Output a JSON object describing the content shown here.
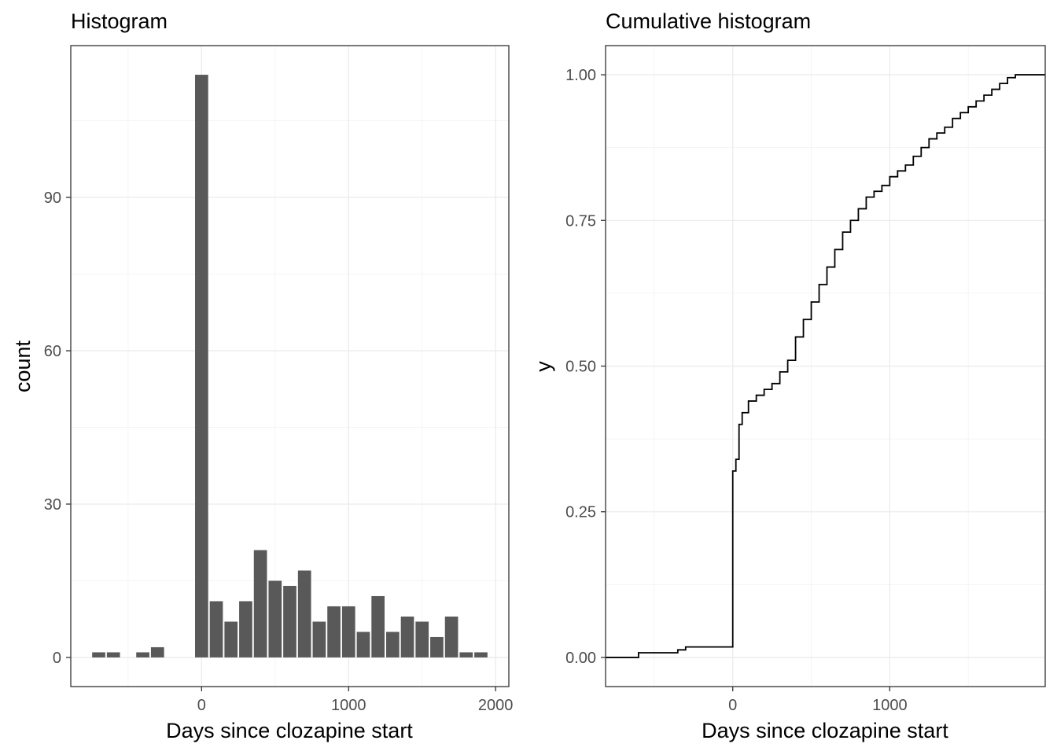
{
  "chart_data": [
    {
      "type": "bar",
      "title": "Histogram",
      "xlabel": "Days since clozapine start",
      "ylabel": "count",
      "xlim": [
        -890,
        2090
      ],
      "ylim": [
        -5.7,
        119.7
      ],
      "xticks": [
        0,
        1000,
        2000
      ],
      "yticks": [
        0,
        30,
        60,
        90
      ],
      "bin_width": 100,
      "bins": [
        {
          "center": -700,
          "count": 1
        },
        {
          "center": -600,
          "count": 1
        },
        {
          "center": -400,
          "count": 1
        },
        {
          "center": -300,
          "count": 2
        },
        {
          "center": 0,
          "count": 114
        },
        {
          "center": 100,
          "count": 11
        },
        {
          "center": 200,
          "count": 7
        },
        {
          "center": 300,
          "count": 11
        },
        {
          "center": 400,
          "count": 21
        },
        {
          "center": 500,
          "count": 15
        },
        {
          "center": 600,
          "count": 14
        },
        {
          "center": 700,
          "count": 17
        },
        {
          "center": 800,
          "count": 7
        },
        {
          "center": 900,
          "count": 10
        },
        {
          "center": 1000,
          "count": 10
        },
        {
          "center": 1100,
          "count": 5
        },
        {
          "center": 1200,
          "count": 12
        },
        {
          "center": 1300,
          "count": 5
        },
        {
          "center": 1400,
          "count": 8
        },
        {
          "center": 1500,
          "count": 7
        },
        {
          "center": 1600,
          "count": 4
        },
        {
          "center": 1700,
          "count": 8
        },
        {
          "center": 1800,
          "count": 1
        },
        {
          "center": 1900,
          "count": 1
        }
      ],
      "grid": true
    },
    {
      "type": "line",
      "title": "Cumulative histogram",
      "xlabel": "Days since clozapine start",
      "ylabel": "y",
      "xlim": [
        -810,
        1990
      ],
      "ylim": [
        -0.05,
        1.05
      ],
      "xticks": [
        0,
        1000
      ],
      "yticks": [
        0.0,
        0.25,
        0.5,
        0.75,
        1.0
      ],
      "ytick_labels": [
        "0.00",
        "0.25",
        "0.50",
        "0.75",
        "1.00"
      ],
      "step": true,
      "x": [
        -810,
        -600,
        -350,
        -300,
        0,
        0,
        20,
        40,
        60,
        100,
        150,
        200,
        250,
        300,
        350,
        400,
        450,
        500,
        550,
        600,
        650,
        700,
        750,
        800,
        850,
        900,
        950,
        1000,
        1050,
        1100,
        1150,
        1200,
        1250,
        1300,
        1350,
        1400,
        1450,
        1500,
        1550,
        1600,
        1650,
        1700,
        1750,
        1800,
        1850,
        1900,
        1990
      ],
      "y": [
        0.0,
        0.008,
        0.013,
        0.018,
        0.021,
        0.32,
        0.34,
        0.4,
        0.42,
        0.44,
        0.45,
        0.46,
        0.47,
        0.49,
        0.51,
        0.55,
        0.58,
        0.61,
        0.64,
        0.67,
        0.7,
        0.73,
        0.75,
        0.77,
        0.79,
        0.8,
        0.81,
        0.825,
        0.835,
        0.845,
        0.86,
        0.875,
        0.89,
        0.9,
        0.91,
        0.925,
        0.935,
        0.945,
        0.955,
        0.965,
        0.975,
        0.985,
        0.995,
        1.0,
        1.0,
        1.0,
        1.0
      ]
    }
  ]
}
